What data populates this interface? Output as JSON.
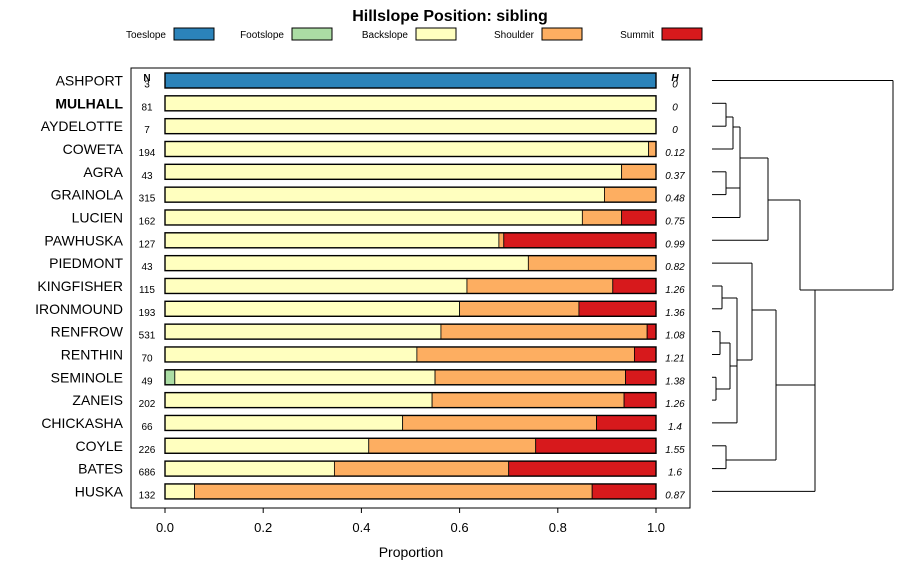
{
  "chart_data": {
    "type": "bar",
    "stacked": true,
    "orientation": "horizontal",
    "title": "Hillslope Position: sibling",
    "xlabel": "Proportion",
    "xlim": [
      0,
      1
    ],
    "xticks": [
      "0.0",
      "0.2",
      "0.4",
      "0.6",
      "0.8",
      "1.0"
    ],
    "n_header": "N",
    "h_header": "H",
    "legend": [
      {
        "name": "Toeslope",
        "color": "#2B83BA"
      },
      {
        "name": "Footslope",
        "color": "#ABDDA4"
      },
      {
        "name": "Backslope",
        "color": "#FFFFBF"
      },
      {
        "name": "Shoulder",
        "color": "#FDAE61"
      },
      {
        "name": "Summit",
        "color": "#D7191C"
      }
    ],
    "highlight": "MULHALL",
    "categories": [
      "ASHPORT",
      "MULHALL",
      "AYDELOTTE",
      "COWETA",
      "AGRA",
      "GRAINOLA",
      "LUCIEN",
      "PAWHUSKA",
      "PIEDMONT",
      "KINGFISHER",
      "IRONMOUND",
      "RENFROW",
      "RENTHIN",
      "SEMINOLE",
      "ZANEIS",
      "CHICKASHA",
      "COYLE",
      "BATES",
      "HUSKA"
    ],
    "n": [
      "3",
      "81",
      "7",
      "194",
      "43",
      "315",
      "162",
      "127",
      "43",
      "115",
      "193",
      "531",
      "70",
      "49",
      "202",
      "66",
      "226",
      "686",
      "132"
    ],
    "h": [
      "0",
      "0",
      "0",
      "0.12",
      "0.37",
      "0.48",
      "0.75",
      "0.99",
      "0.82",
      "1.26",
      "1.36",
      "1.08",
      "1.21",
      "1.38",
      "1.26",
      "1.4",
      "1.55",
      "1.6",
      "0.87"
    ],
    "series": [
      {
        "name": "Toeslope",
        "values": [
          1.0,
          0,
          0,
          0,
          0,
          0,
          0,
          0,
          0,
          0,
          0,
          0,
          0,
          0,
          0,
          0,
          0,
          0,
          0
        ]
      },
      {
        "name": "Footslope",
        "values": [
          0,
          0,
          0,
          0,
          0,
          0,
          0,
          0,
          0,
          0,
          0,
          0,
          0,
          0.02,
          0,
          0,
          0,
          0,
          0
        ]
      },
      {
        "name": "Backslope",
        "values": [
          0,
          1.0,
          1.0,
          0.985,
          0.93,
          0.895,
          0.85,
          0.68,
          0.74,
          0.615,
          0.6,
          0.562,
          0.513,
          0.53,
          0.544,
          0.484,
          0.415,
          0.345,
          0.06
        ]
      },
      {
        "name": "Shoulder",
        "values": [
          0,
          0,
          0,
          0.015,
          0.07,
          0.105,
          0.08,
          0.01,
          0.26,
          0.297,
          0.243,
          0.42,
          0.443,
          0.388,
          0.391,
          0.395,
          0.34,
          0.355,
          0.81
        ]
      },
      {
        "name": "Summit",
        "values": [
          0,
          0,
          0,
          0,
          0,
          0,
          0.07,
          0.31,
          0,
          0.088,
          0.157,
          0.018,
          0.044,
          0.062,
          0.065,
          0.121,
          0.245,
          0.3,
          0.13
        ]
      }
    ],
    "dendrogram": "hierarchical clustering of soil series (right margin)"
  }
}
